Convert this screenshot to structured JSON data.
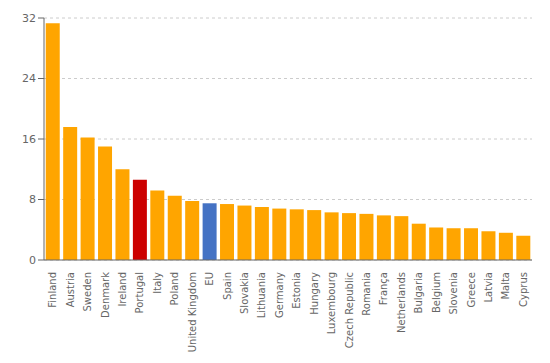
{
  "chart_data": {
    "type": "bar",
    "categories": [
      "Finland",
      "Austria",
      "Sweden",
      "Denmark",
      "Ireland",
      "Portugal",
      "Italy",
      "Poland",
      "United Kingdom",
      "EU",
      "Spain",
      "Slovakia",
      "Lithuania",
      "Germany",
      "Estonia",
      "Hungary",
      "Luxembourg",
      "Czech Republic",
      "Romania",
      "França",
      "Netherlands",
      "Bulgaria",
      "Belgium",
      "Slovenia",
      "Greece",
      "Latvia",
      "Malta",
      "Cyprus"
    ],
    "values": [
      31.3,
      17.6,
      16.2,
      15.0,
      12.0,
      10.6,
      9.2,
      8.5,
      7.8,
      7.5,
      7.4,
      7.2,
      7.0,
      6.8,
      6.7,
      6.6,
      6.3,
      6.2,
      6.1,
      5.9,
      5.8,
      4.8,
      4.3,
      4.2,
      4.2,
      3.8,
      3.6,
      3.2
    ],
    "colors": [
      "#FFA500",
      "#FFA500",
      "#FFA500",
      "#FFA500",
      "#FFA500",
      "#CC0000",
      "#FFA500",
      "#FFA500",
      "#FFA500",
      "#4472C4",
      "#FFA500",
      "#FFA500",
      "#FFA500",
      "#FFA500",
      "#FFA500",
      "#FFA500",
      "#FFA500",
      "#FFA500",
      "#FFA500",
      "#FFA500",
      "#FFA500",
      "#FFA500",
      "#FFA500",
      "#FFA500",
      "#FFA500",
      "#FFA500",
      "#FFA500",
      "#FFA500"
    ],
    "ylim": [
      0,
      32
    ],
    "yticks": [
      0,
      8,
      16,
      24,
      32
    ],
    "grid": true
  }
}
